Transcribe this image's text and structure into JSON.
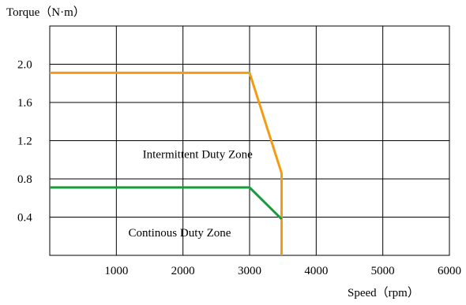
{
  "chart_data": {
    "type": "line",
    "ylabel": "Torque（N·m）",
    "xlabel": "Speed（rpm）",
    "xlim": [
      0,
      6000
    ],
    "ylim": [
      0,
      2.4
    ],
    "x_ticks": [
      1000,
      2000,
      3000,
      4000,
      5000,
      6000
    ],
    "x_tick_labels": [
      "1000",
      "2000",
      "3000",
      "4000",
      "5000",
      "6000"
    ],
    "y_ticks": [
      0.4,
      0.8,
      1.2,
      1.6,
      2.0
    ],
    "y_tick_labels": [
      "0.4",
      "0.8",
      "1.2",
      "1.6",
      "2.0"
    ],
    "grid": true,
    "series": [
      {
        "color": "#f39c12",
        "x": [
          0,
          3000,
          3480,
          3480
        ],
        "y": [
          1.91,
          1.91,
          0.86,
          0
        ]
      },
      {
        "color": "#1a9a3c",
        "x": [
          0,
          3000,
          3480
        ],
        "y": [
          0.71,
          0.71,
          0.38
        ]
      }
    ],
    "annotations": [
      {
        "text": "Intermittent Duty Zone",
        "x": 2220,
        "y": 1.06
      },
      {
        "text": "Continous Duty Zone",
        "x": 1950,
        "y": 0.24
      }
    ]
  }
}
